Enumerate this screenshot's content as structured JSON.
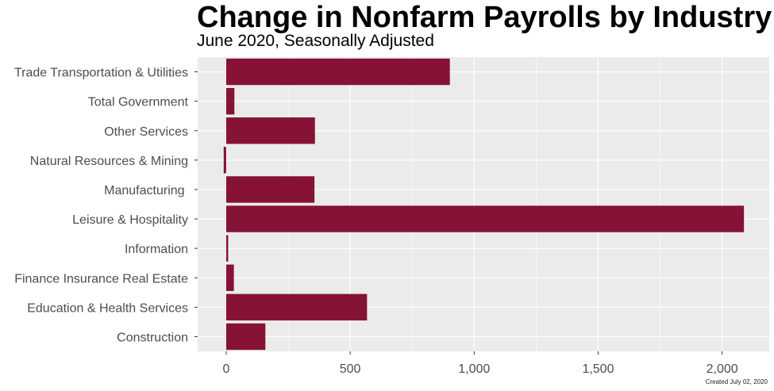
{
  "chart_data": {
    "type": "bar",
    "orientation": "horizontal",
    "title": "Change in Nonfarm Payrolls by Industry",
    "subtitle": "June 2020, Seasonally Adjusted",
    "caption": "Created July 02, 2020",
    "categories": [
      "Construction",
      "Education & Health Services",
      "Finance Insurance Real Estate",
      "Information",
      "Leisure & Hospitality",
      "Manufacturing ",
      "Natural Resources & Mining",
      "Other Services",
      "Total Government",
      "Trade Transportation & Utilities"
    ],
    "values": [
      158,
      568,
      31,
      8,
      2088,
      356,
      -10,
      358,
      33,
      902
    ],
    "xlim": [
      -115,
      2190
    ],
    "xticks": [
      0,
      500,
      1000,
      1500,
      2000
    ],
    "xtick_labels": [
      "0",
      "500",
      "1,000",
      "1,500",
      "2,000"
    ],
    "xlabel": "",
    "ylabel": "",
    "grid": true,
    "colors": {
      "bar": "#861236",
      "panel": "#ebebeb",
      "grid": "#ffffff"
    }
  }
}
